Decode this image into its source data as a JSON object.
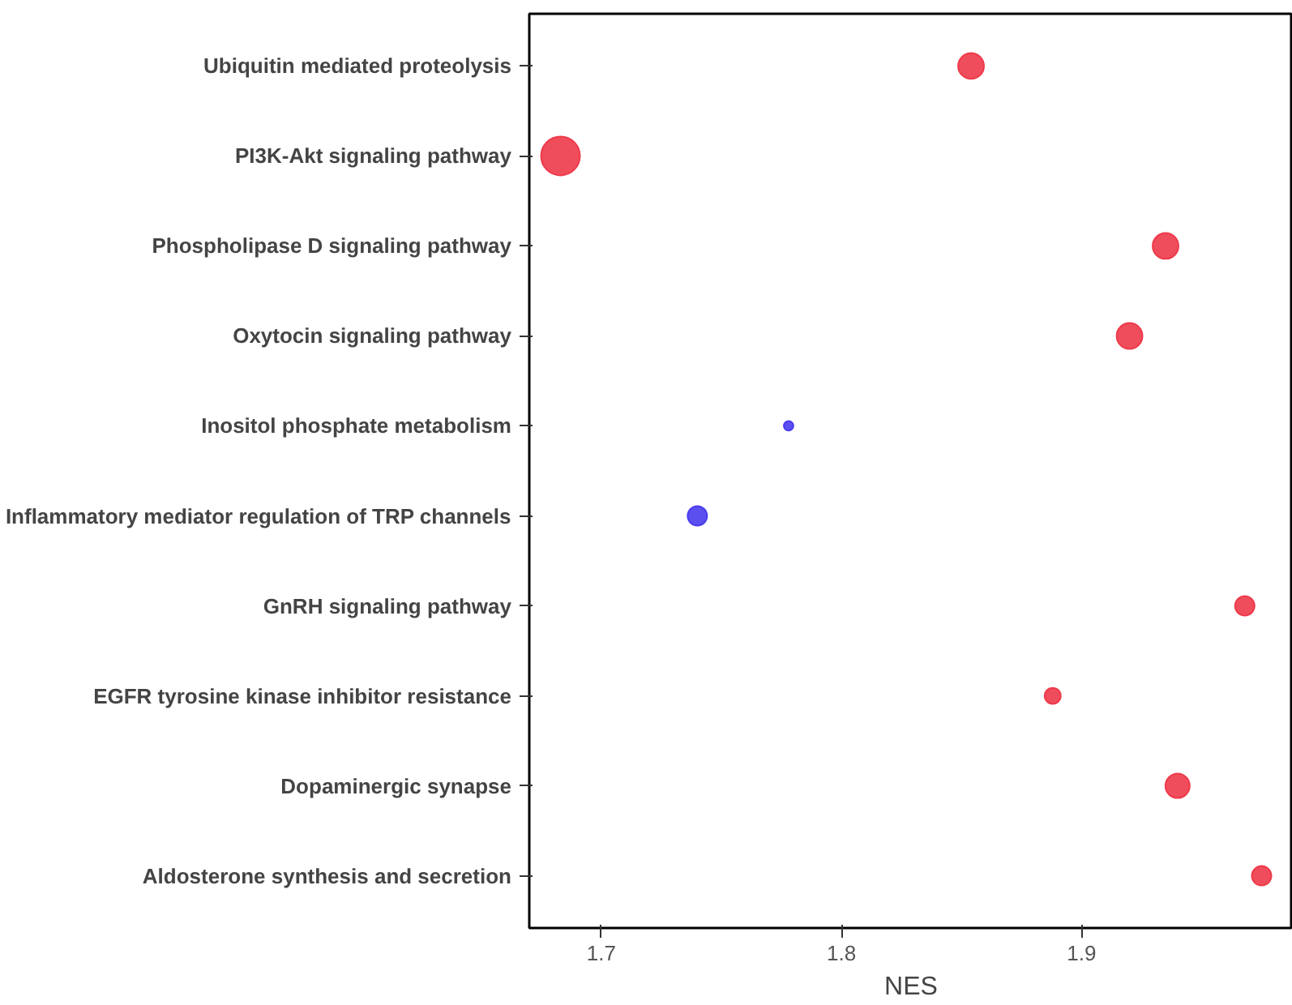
{
  "chart_data": {
    "type": "bubble",
    "xlabel": "NES",
    "categories": [
      "Ubiquitin mediated proteolysis",
      "PI3K-Akt signaling pathway",
      "Phospholipase D signaling pathway",
      "Oxytocin signaling pathway",
      "Inositol phosphate metabolism",
      "Inflammatory mediator regulation of TRP channels",
      "GnRH signaling pathway",
      "EGFR tyrosine kinase inhibitor resistance",
      "Dopaminergic synapse",
      "Aldosterone synthesis and secretion"
    ],
    "orientation": "horizontal",
    "values": [
      1.854,
      1.683,
      1.935,
      1.92,
      1.778,
      1.74,
      1.968,
      1.888,
      1.94,
      1.975
    ],
    "sizes": [
      0.44,
      1,
      0.44,
      0.44,
      0.06,
      0.25,
      0.25,
      0.17,
      0.39,
      0.25
    ],
    "colors": [
      "#ee3a4a",
      "#ee3a4a",
      "#ee3a4a",
      "#ee3a4a",
      "#4a3cee",
      "#4a3cee",
      "#ee3a4a",
      "#ee3a4a",
      "#ee3a4a",
      "#ee3a4a"
    ],
    "xlim": [
      1.67,
      1.988
    ],
    "xticks": [
      1.7,
      1.8,
      1.9
    ],
    "grid": false,
    "marker": "circle"
  }
}
